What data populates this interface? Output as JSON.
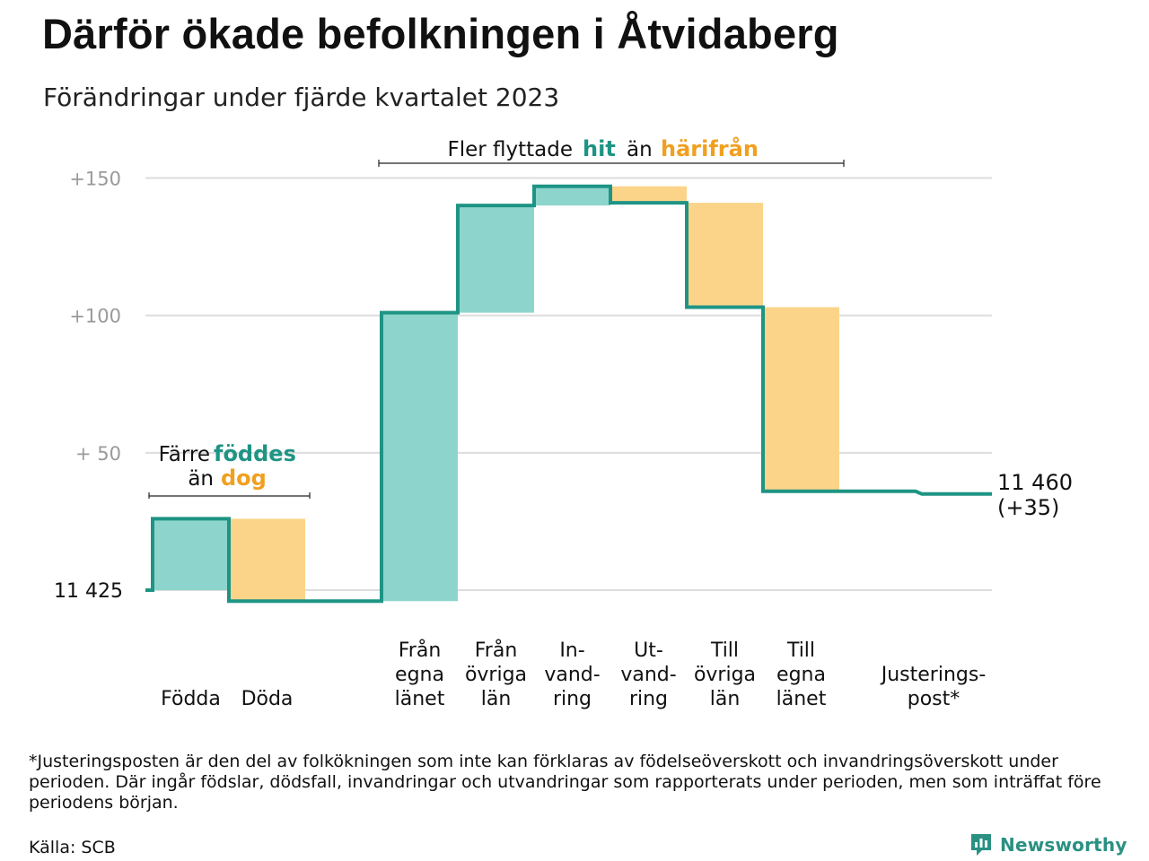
{
  "title": "Därför ökade befolkningen i Åtvidaberg",
  "subtitle": "Förändringar under fjärde kvartalet 2023",
  "colors": {
    "in": "#8dd5cc",
    "out": "#fbd48a",
    "line": "#1e9484",
    "grid": "#dddddd",
    "tick": "#9a9a9a",
    "in_text": "#1e9484",
    "out_text": "#f0a020"
  },
  "chart_data": {
    "type": "waterfall",
    "baseline_label": "11  425",
    "baseline": 0,
    "ylim": [
      -5,
      152
    ],
    "yticks": [
      {
        "value": 50,
        "label": "+  50"
      },
      {
        "value": 100,
        "label": "+100"
      },
      {
        "value": 150,
        "label": "+150"
      }
    ],
    "steps": [
      {
        "name": "Födda",
        "label_lines": [
          "Födda"
        ],
        "kind": "in",
        "start": 0,
        "end": 26
      },
      {
        "name": "Döda",
        "label_lines": [
          "Döda"
        ],
        "kind": "out",
        "start": 26,
        "end": -4
      },
      {
        "name": "Från egna länet",
        "label_lines": [
          "Från",
          "egna",
          "länet"
        ],
        "kind": "in",
        "start": -4,
        "end": 101
      },
      {
        "name": "Från övriga län",
        "label_lines": [
          "Från",
          "övriga",
          "län"
        ],
        "kind": "in",
        "start": 101,
        "end": 140
      },
      {
        "name": "In-vandring",
        "label_lines": [
          "In-",
          "vand-",
          "ring"
        ],
        "kind": "in",
        "start": 140,
        "end": 147
      },
      {
        "name": "Ut-vandring",
        "label_lines": [
          "Ut-",
          "vand-",
          "ring"
        ],
        "kind": "out",
        "start": 147,
        "end": 141
      },
      {
        "name": "Till övriga län",
        "label_lines": [
          "Till",
          "övriga",
          "län"
        ],
        "kind": "out",
        "start": 141,
        "end": 103
      },
      {
        "name": "Till egna länet",
        "label_lines": [
          "Till",
          "egna",
          "länet"
        ],
        "kind": "out",
        "start": 103,
        "end": 36
      },
      {
        "name": "Justeringspost*",
        "label_lines": [
          "Justerings-",
          "post*"
        ],
        "kind": "adjust",
        "start": 36,
        "end": 35
      }
    ],
    "end_label_lines": [
      "11 460",
      "(+35)"
    ],
    "annotations": {
      "births": {
        "pre": "Färre",
        "in": "föddes",
        "mid": "än",
        "out": "dog"
      },
      "migration": {
        "pre": "Fler flyttade",
        "in": "hit",
        "mid": "än",
        "out": "härifrån"
      }
    }
  },
  "footnote": "*Justeringsposten är den del av folkökningen som inte kan förklaras av födelseöverskott och invandringsöverskott under perioden. Där ingår födslar, dödsfall, invandringar och utvandringar som rapporterats under perioden, men som inträffat före periodens början.",
  "source": "Källa: SCB",
  "brand": {
    "name": "Newsworthy",
    "logo_icon": "newsworthy-logo-icon"
  }
}
